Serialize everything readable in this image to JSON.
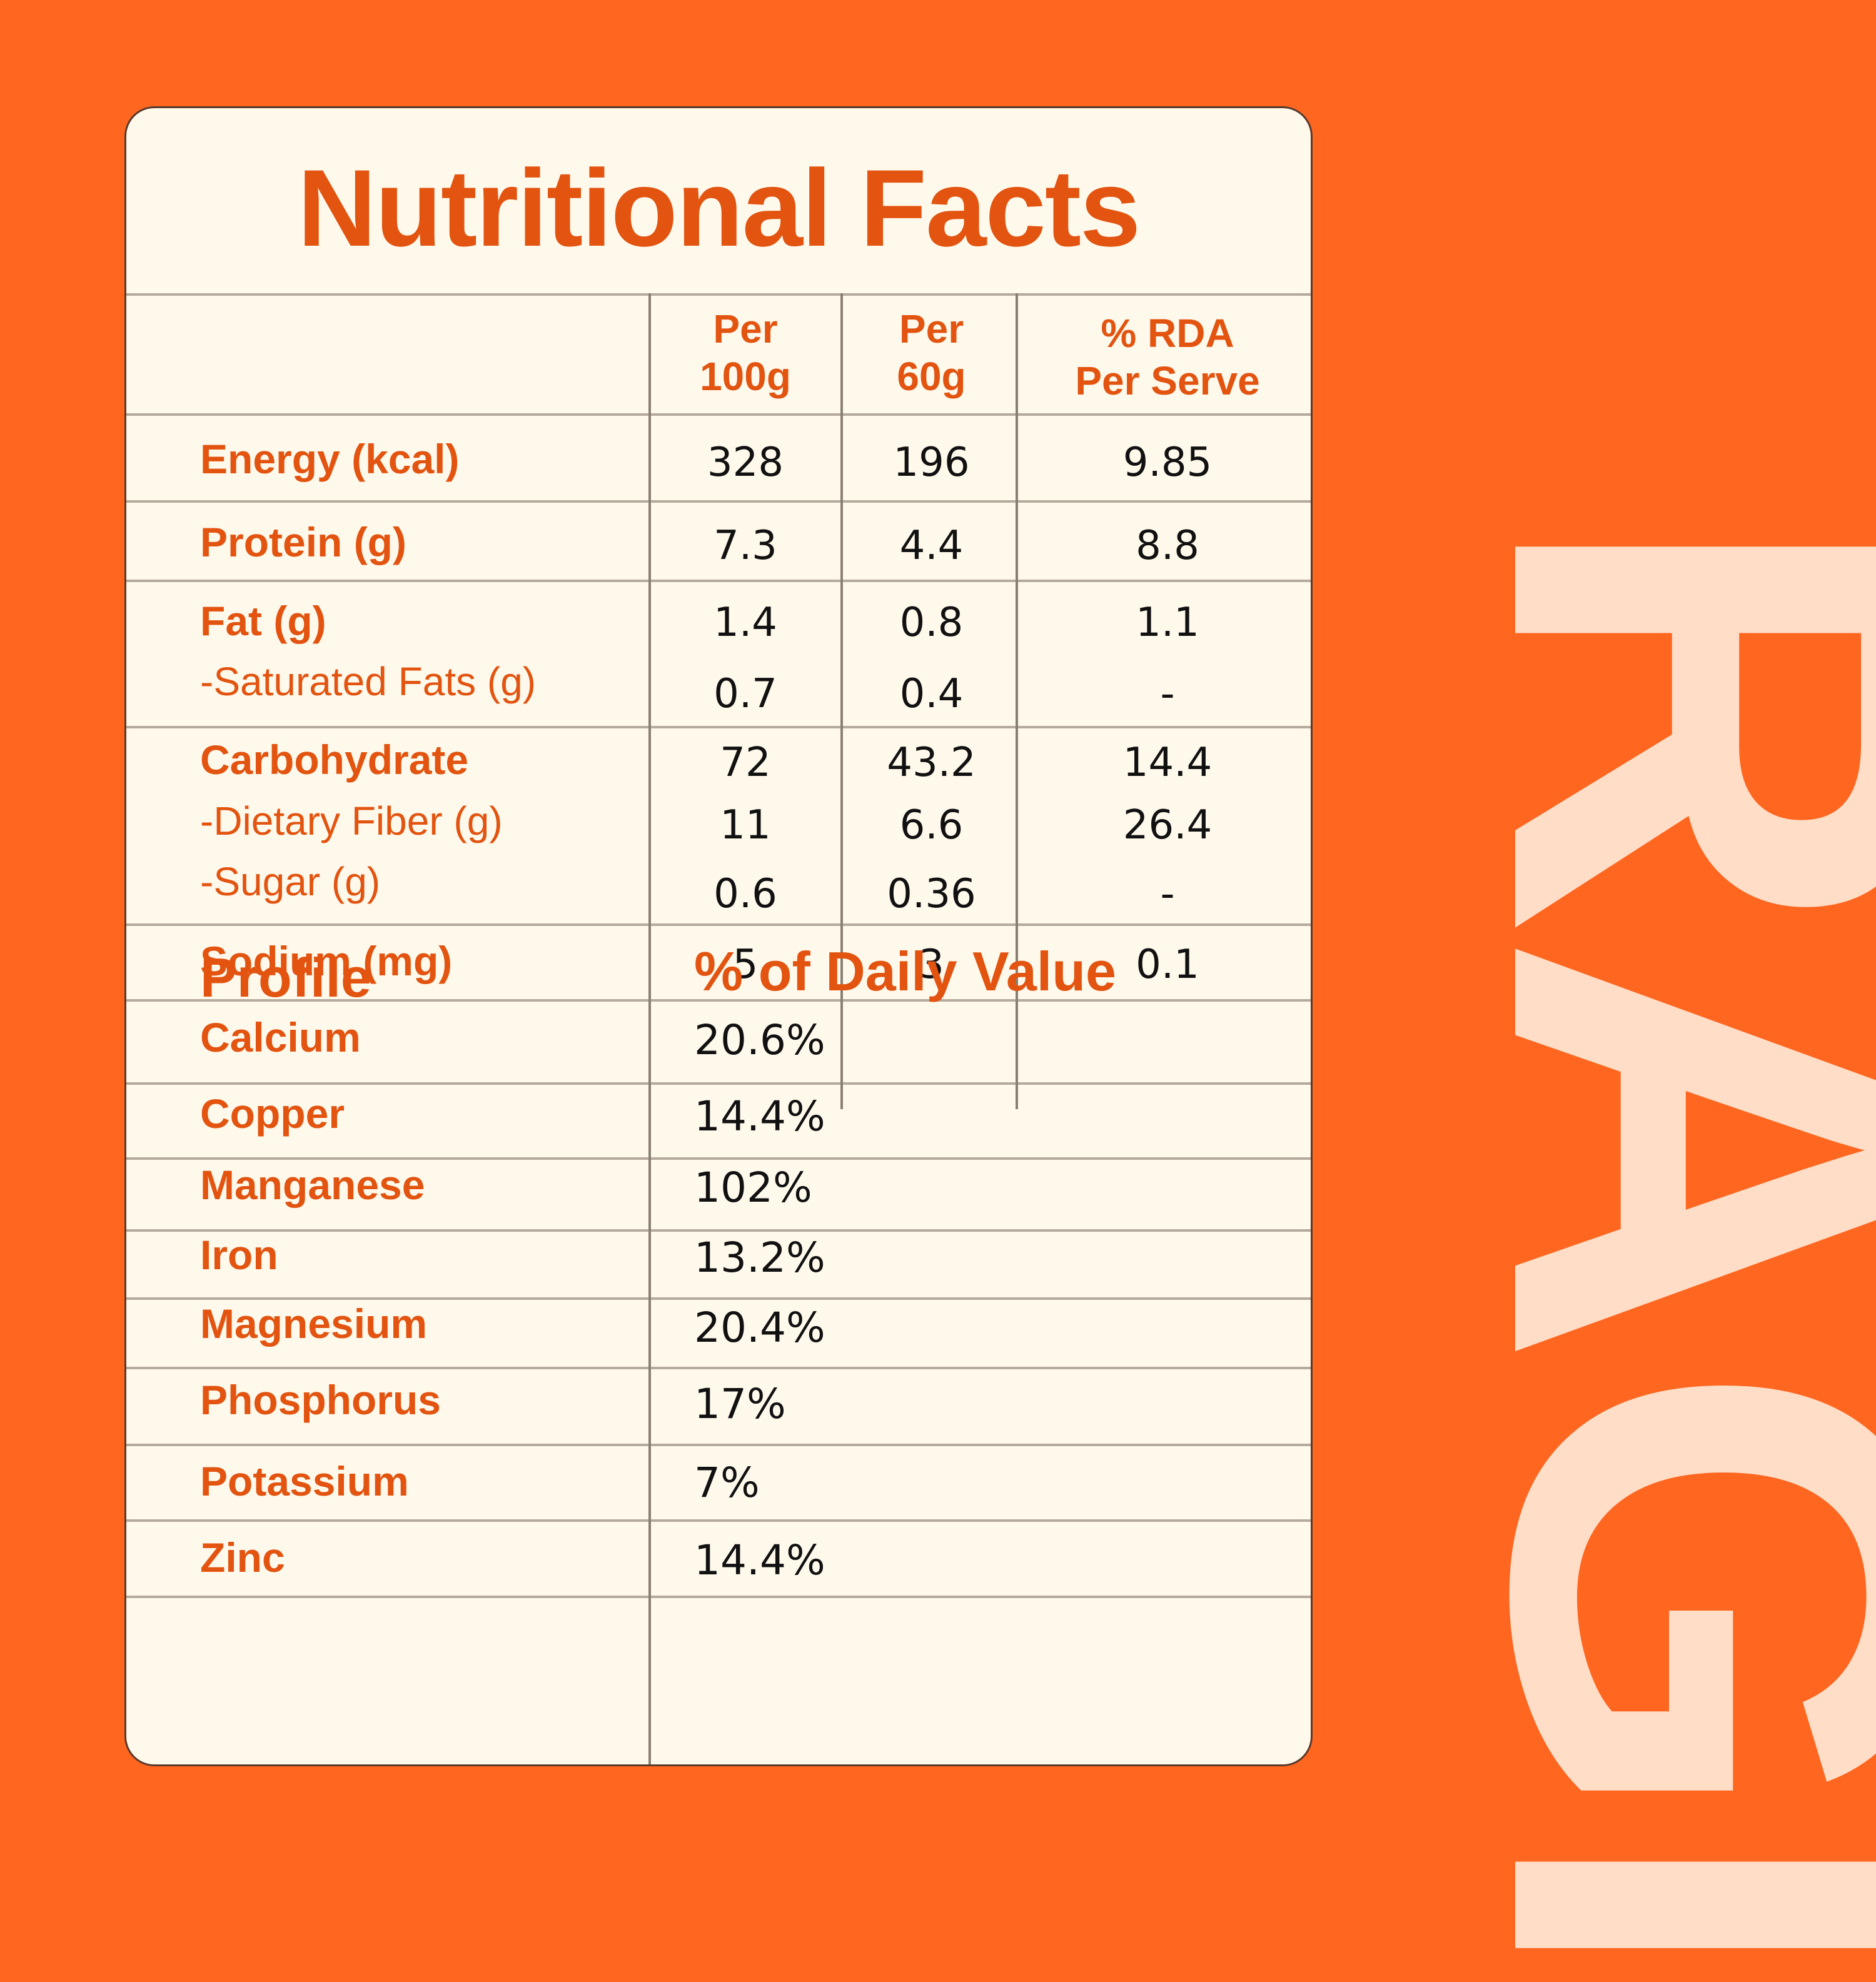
{
  "title": "Nutritional Facts",
  "brand": "RAGI",
  "columns": {
    "per100_l1": "Per",
    "per100_l2": "100g",
    "per60_l1": "Per",
    "per60_l2": "60g",
    "rda_l1": "% RDA",
    "rda_l2": "Per Serve"
  },
  "nutrients": {
    "energy": {
      "label": "Energy (kcal)",
      "per100": "328",
      "per60": "196",
      "rda": "9.85"
    },
    "protein": {
      "label": "Protein (g)",
      "per100": "7.3",
      "per60": "4.4",
      "rda": "8.8"
    },
    "fat": {
      "label": "Fat (g)",
      "per100": "1.4",
      "per60": "0.8",
      "rda": "1.1"
    },
    "satfat": {
      "label": "-Saturated Fats (g)",
      "per100": "0.7",
      "per60": "0.4",
      "rda": "-"
    },
    "carb": {
      "label": "Carbohydrate",
      "per100": "72",
      "per60": "43.2",
      "rda": "14.4"
    },
    "fiber": {
      "label": "-Dietary Fiber (g)",
      "per100": "11",
      "per60": "6.6",
      "rda": "26.4"
    },
    "sugar": {
      "label": "-Sugar (g)",
      "per100": "0.6",
      "per60": "0.36",
      "rda": "-"
    },
    "sodium": {
      "label": "Sodium (mg)",
      "per100": "5",
      "per60": "3",
      "rda": "0.1"
    }
  },
  "profile": {
    "header": "Profile",
    "value_header": "% of Daily Value",
    "rows": [
      {
        "label": "Calcium",
        "value": "20.6%"
      },
      {
        "label": "Copper",
        "value": "14.4%"
      },
      {
        "label": "Manganese",
        "value": "102%"
      },
      {
        "label": "Iron",
        "value": "13.2%"
      },
      {
        "label": "Magnesium",
        "value": "20.4%"
      },
      {
        "label": "Phosphorus",
        "value": "17%"
      },
      {
        "label": "Potassium",
        "value": "7%"
      },
      {
        "label": "Zinc",
        "value": "14.4%"
      }
    ]
  },
  "colors": {
    "background": "#FF6620",
    "card": "#FFF9EC",
    "accent": "#E25410",
    "brand_text": "#FFDDC7"
  }
}
